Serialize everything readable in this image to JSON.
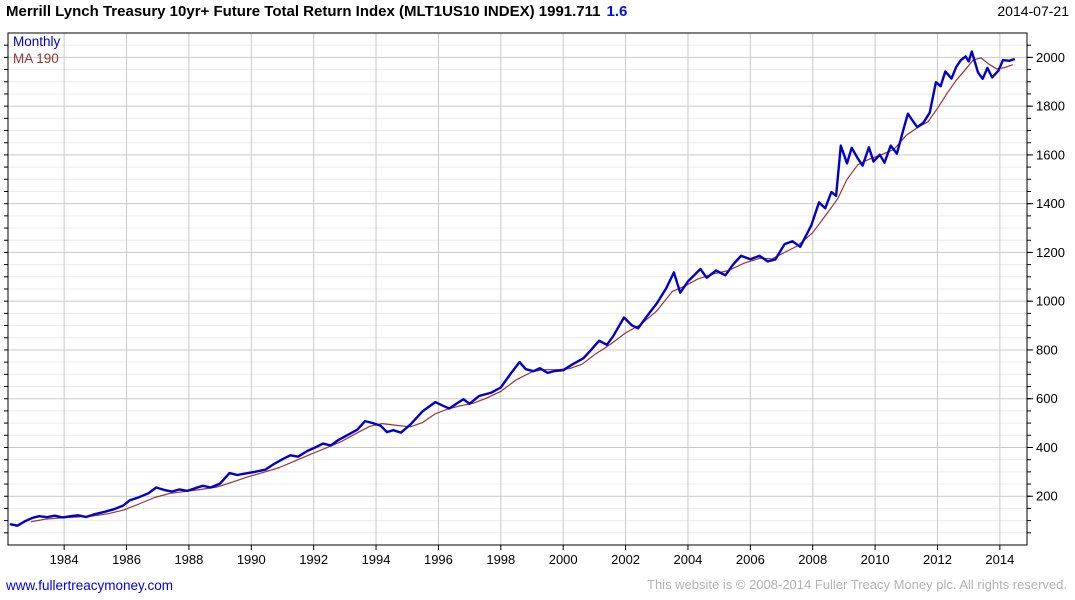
{
  "header": {
    "title_main": "Merrill Lynch Treasury 10yr+ Future Total Return Index (MLT1US10 INDEX) 1991.711",
    "title_change": "1.6",
    "date": "2014-07-21"
  },
  "footer": {
    "link": "www.fullertreacymoney.com",
    "copyright": "This website is © 2008-2014 Fuller Treacy Money plc. All rights reserved."
  },
  "colors": {
    "price_line": "#0000cc",
    "ma_line": "#993333",
    "grid_major": "#c9c9c9",
    "grid_minor": "#ececec",
    "axis": "#000000",
    "label": "#000000",
    "accent_blue": "#0011ee",
    "footer_gray": "#b3b3b3"
  },
  "chart_data": {
    "type": "line",
    "title": "Merrill Lynch Treasury 10yr+ Future Total Return Index (MLT1US10 INDEX)",
    "last_value": 1991.711,
    "change": 1.6,
    "xlabel": "",
    "ylabel": "",
    "grid": true,
    "legend_position": "top-left",
    "xlim": [
      1982.2,
      2014.87
    ],
    "ylim": [
      0,
      2100
    ],
    "x_ticks": [
      1984,
      1986,
      1988,
      1990,
      1992,
      1994,
      1996,
      1998,
      2000,
      2002,
      2004,
      2006,
      2008,
      2010,
      2012,
      2014
    ],
    "y_ticks": [
      200,
      400,
      600,
      800,
      1000,
      1200,
      1400,
      1600,
      1800,
      2000
    ],
    "y_minor_step": 50,
    "series": [
      {
        "name": "Monthly",
        "color": "#0000cc",
        "width": 2.4,
        "points": [
          [
            1982.29,
            85
          ],
          [
            1982.5,
            79
          ],
          [
            1982.75,
            98
          ],
          [
            1983.0,
            112
          ],
          [
            1983.2,
            118
          ],
          [
            1983.45,
            114
          ],
          [
            1983.7,
            120
          ],
          [
            1983.95,
            113
          ],
          [
            1984.2,
            118
          ],
          [
            1984.45,
            122
          ],
          [
            1984.7,
            115
          ],
          [
            1985.0,
            127
          ],
          [
            1985.3,
            136
          ],
          [
            1985.6,
            147
          ],
          [
            1985.9,
            162
          ],
          [
            1986.1,
            183
          ],
          [
            1986.4,
            196
          ],
          [
            1986.7,
            212
          ],
          [
            1986.95,
            236
          ],
          [
            1987.2,
            226
          ],
          [
            1987.45,
            219
          ],
          [
            1987.7,
            228
          ],
          [
            1987.95,
            222
          ],
          [
            1988.2,
            233
          ],
          [
            1988.45,
            243
          ],
          [
            1988.7,
            236
          ],
          [
            1989.0,
            252
          ],
          [
            1989.3,
            295
          ],
          [
            1989.55,
            287
          ],
          [
            1989.8,
            293
          ],
          [
            1990.1,
            300
          ],
          [
            1990.45,
            309
          ],
          [
            1990.7,
            330
          ],
          [
            1991.0,
            352
          ],
          [
            1991.25,
            368
          ],
          [
            1991.5,
            362
          ],
          [
            1991.8,
            386
          ],
          [
            1992.05,
            400
          ],
          [
            1992.3,
            416
          ],
          [
            1992.55,
            408
          ],
          [
            1992.8,
            431
          ],
          [
            1993.1,
            452
          ],
          [
            1993.4,
            473
          ],
          [
            1993.65,
            508
          ],
          [
            1993.9,
            500
          ],
          [
            1994.15,
            489
          ],
          [
            1994.35,
            463
          ],
          [
            1994.55,
            471
          ],
          [
            1994.8,
            461
          ],
          [
            1995.1,
            494
          ],
          [
            1995.5,
            549
          ],
          [
            1995.9,
            586
          ],
          [
            1996.15,
            571
          ],
          [
            1996.35,
            560
          ],
          [
            1996.6,
            581
          ],
          [
            1996.8,
            598
          ],
          [
            1997.0,
            579
          ],
          [
            1997.3,
            611
          ],
          [
            1997.7,
            625
          ],
          [
            1998.0,
            646
          ],
          [
            1998.3,
            700
          ],
          [
            1998.6,
            750
          ],
          [
            1998.8,
            721
          ],
          [
            1999.05,
            713
          ],
          [
            1999.25,
            725
          ],
          [
            1999.5,
            706
          ],
          [
            1999.75,
            714
          ],
          [
            2000.0,
            717
          ],
          [
            2000.3,
            741
          ],
          [
            2000.65,
            766
          ],
          [
            2000.9,
            801
          ],
          [
            2001.15,
            838
          ],
          [
            2001.4,
            821
          ],
          [
            2001.6,
            856
          ],
          [
            2001.95,
            933
          ],
          [
            2002.2,
            901
          ],
          [
            2002.4,
            889
          ],
          [
            2002.7,
            941
          ],
          [
            2003.0,
            991
          ],
          [
            2003.3,
            1052
          ],
          [
            2003.55,
            1118
          ],
          [
            2003.75,
            1035
          ],
          [
            2004.0,
            1081
          ],
          [
            2004.4,
            1132
          ],
          [
            2004.6,
            1096
          ],
          [
            2004.9,
            1126
          ],
          [
            2005.2,
            1106
          ],
          [
            2005.45,
            1151
          ],
          [
            2005.7,
            1186
          ],
          [
            2006.0,
            1172
          ],
          [
            2006.3,
            1186
          ],
          [
            2006.55,
            1163
          ],
          [
            2006.8,
            1171
          ],
          [
            2007.1,
            1234
          ],
          [
            2007.35,
            1246
          ],
          [
            2007.6,
            1223
          ],
          [
            2007.95,
            1310
          ],
          [
            2008.2,
            1405
          ],
          [
            2008.4,
            1381
          ],
          [
            2008.6,
            1448
          ],
          [
            2008.75,
            1432
          ],
          [
            2008.9,
            1638
          ],
          [
            2009.1,
            1565
          ],
          [
            2009.25,
            1629
          ],
          [
            2009.45,
            1585
          ],
          [
            2009.6,
            1556
          ],
          [
            2009.8,
            1631
          ],
          [
            2009.95,
            1573
          ],
          [
            2010.15,
            1601
          ],
          [
            2010.3,
            1568
          ],
          [
            2010.5,
            1638
          ],
          [
            2010.7,
            1605
          ],
          [
            2010.9,
            1701
          ],
          [
            2011.05,
            1769
          ],
          [
            2011.2,
            1741
          ],
          [
            2011.35,
            1714
          ],
          [
            2011.55,
            1732
          ],
          [
            2011.75,
            1773
          ],
          [
            2011.95,
            1898
          ],
          [
            2012.1,
            1882
          ],
          [
            2012.25,
            1942
          ],
          [
            2012.45,
            1913
          ],
          [
            2012.6,
            1961
          ],
          [
            2012.75,
            1989
          ],
          [
            2012.9,
            2004
          ],
          [
            2013.0,
            1983
          ],
          [
            2013.1,
            2024
          ],
          [
            2013.3,
            1938
          ],
          [
            2013.45,
            1912
          ],
          [
            2013.6,
            1957
          ],
          [
            2013.75,
            1918
          ],
          [
            2013.95,
            1945
          ],
          [
            2014.1,
            1989
          ],
          [
            2014.3,
            1986
          ],
          [
            2014.45,
            1992
          ]
        ]
      },
      {
        "name": "MA 190",
        "color": "#993333",
        "width": 1.2,
        "points": [
          [
            1982.95,
            96
          ],
          [
            1983.4,
            106
          ],
          [
            1983.9,
            111
          ],
          [
            1984.4,
            115
          ],
          [
            1984.9,
            119
          ],
          [
            1985.4,
            128
          ],
          [
            1985.9,
            143
          ],
          [
            1986.4,
            168
          ],
          [
            1986.9,
            195
          ],
          [
            1987.4,
            212
          ],
          [
            1987.9,
            220
          ],
          [
            1988.4,
            228
          ],
          [
            1988.9,
            238
          ],
          [
            1989.4,
            258
          ],
          [
            1989.9,
            280
          ],
          [
            1990.4,
            298
          ],
          [
            1990.9,
            318
          ],
          [
            1991.4,
            345
          ],
          [
            1991.9,
            372
          ],
          [
            1992.4,
            398
          ],
          [
            1992.9,
            425
          ],
          [
            1993.4,
            460
          ],
          [
            1993.8,
            487
          ],
          [
            1994.2,
            498
          ],
          [
            1994.7,
            490
          ],
          [
            1995.1,
            485
          ],
          [
            1995.5,
            503
          ],
          [
            1995.9,
            538
          ],
          [
            1996.3,
            558
          ],
          [
            1996.7,
            571
          ],
          [
            1997.1,
            581
          ],
          [
            1997.5,
            600
          ],
          [
            1998.0,
            630
          ],
          [
            1998.5,
            678
          ],
          [
            1999.0,
            710
          ],
          [
            1999.35,
            719
          ],
          [
            1999.8,
            719
          ],
          [
            2000.2,
            723
          ],
          [
            2000.6,
            741
          ],
          [
            2001.0,
            780
          ],
          [
            2001.5,
            822
          ],
          [
            2002.0,
            870
          ],
          [
            2002.5,
            906
          ],
          [
            2003.0,
            960
          ],
          [
            2003.5,
            1040
          ],
          [
            2003.9,
            1062
          ],
          [
            2004.3,
            1090
          ],
          [
            2004.8,
            1111
          ],
          [
            2005.3,
            1126
          ],
          [
            2005.8,
            1156
          ],
          [
            2006.3,
            1176
          ],
          [
            2006.7,
            1174
          ],
          [
            2007.1,
            1200
          ],
          [
            2007.5,
            1226
          ],
          [
            2008.0,
            1281
          ],
          [
            2008.4,
            1350
          ],
          [
            2008.8,
            1420
          ],
          [
            2009.1,
            1500
          ],
          [
            2009.45,
            1560
          ],
          [
            2009.8,
            1582
          ],
          [
            2010.2,
            1601
          ],
          [
            2010.6,
            1622
          ],
          [
            2011.0,
            1681
          ],
          [
            2011.35,
            1711
          ],
          [
            2011.7,
            1736
          ],
          [
            2012.0,
            1791
          ],
          [
            2012.3,
            1851
          ],
          [
            2012.6,
            1906
          ],
          [
            2012.9,
            1951
          ],
          [
            2013.15,
            1990
          ],
          [
            2013.4,
            1998
          ],
          [
            2013.65,
            1972
          ],
          [
            2013.9,
            1953
          ],
          [
            2014.15,
            1958
          ],
          [
            2014.4,
            1969
          ]
        ]
      }
    ]
  }
}
